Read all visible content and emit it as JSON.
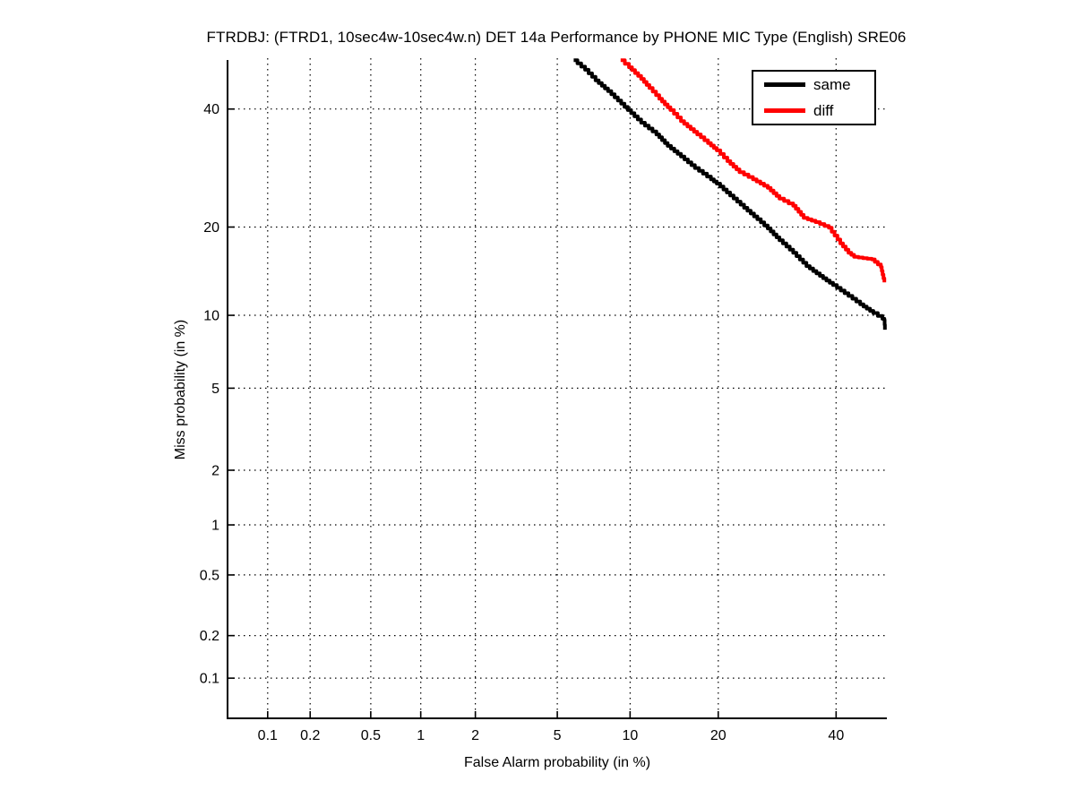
{
  "chart_data": {
    "type": "line",
    "title": "FTRDBJ: (FTRD1, 10sec4w-10sec4w.n) DET 14a Performance by PHONE MIC Type (English) SRE06",
    "xlabel": "False Alarm probability (in %)",
    "ylabel": "Miss probability (in %)",
    "axis_scale": "normal-deviate (probit), both axes",
    "xlim_pct": [
      0.05,
      50
    ],
    "ylim_pct": [
      0.05,
      50
    ],
    "grid": true,
    "grid_style": "dotted",
    "legend_position": "top-right",
    "x_ticks": [
      {
        "value": 0.1,
        "label": "0.1"
      },
      {
        "value": 0.2,
        "label": "0.2"
      },
      {
        "value": 0.5,
        "label": "0.5"
      },
      {
        "value": 1,
        "label": "1"
      },
      {
        "value": 2,
        "label": "2"
      },
      {
        "value": 5,
        "label": "5"
      },
      {
        "value": 10,
        "label": "10"
      },
      {
        "value": 20,
        "label": "20"
      },
      {
        "value": 40,
        "label": "40"
      }
    ],
    "y_ticks": [
      {
        "value": 0.1,
        "label": "0.1"
      },
      {
        "value": 0.2,
        "label": "0.2"
      },
      {
        "value": 0.5,
        "label": "0.5"
      },
      {
        "value": 1,
        "label": "1"
      },
      {
        "value": 2,
        "label": "2"
      },
      {
        "value": 5,
        "label": "5"
      },
      {
        "value": 10,
        "label": "10"
      },
      {
        "value": 20,
        "label": "20"
      },
      {
        "value": 40,
        "label": "40"
      }
    ],
    "series": [
      {
        "name": "same",
        "color": "#000000",
        "points_fa_miss_pct": [
          [
            5.9,
            49.6
          ],
          [
            6.6,
            47.7
          ],
          [
            7.3,
            45.6
          ],
          [
            8.2,
            43.5
          ],
          [
            9.8,
            39.8
          ],
          [
            11.0,
            37.4
          ],
          [
            12.5,
            35.2
          ],
          [
            13.7,
            33.1
          ],
          [
            15.2,
            31.2
          ],
          [
            16.9,
            29.2
          ],
          [
            19.0,
            27.3
          ],
          [
            19.8,
            26.6
          ],
          [
            21.7,
            24.7
          ],
          [
            23.8,
            22.8
          ],
          [
            25.9,
            21.1
          ],
          [
            27.6,
            19.8
          ],
          [
            29.6,
            18.2
          ],
          [
            32.0,
            16.6
          ],
          [
            34.4,
            15.0
          ],
          [
            36.9,
            13.9
          ],
          [
            39.4,
            12.9
          ],
          [
            42.4,
            11.8
          ],
          [
            44.7,
            11.0
          ],
          [
            47.3,
            10.2
          ],
          [
            49.1,
            9.7
          ],
          [
            49.5,
            9.6
          ],
          [
            49.6,
            8.8
          ]
        ]
      },
      {
        "name": "diff",
        "color": "#ff0000",
        "points_fa_miss_pct": [
          [
            9.2,
            49.6
          ],
          [
            9.9,
            48.2
          ],
          [
            11.0,
            45.9
          ],
          [
            11.8,
            44.1
          ],
          [
            12.8,
            42.0
          ],
          [
            14.0,
            39.8
          ],
          [
            15.2,
            37.7
          ],
          [
            17.2,
            35.2
          ],
          [
            18.6,
            33.6
          ],
          [
            19.8,
            32.3
          ],
          [
            21.3,
            30.4
          ],
          [
            23.1,
            28.5
          ],
          [
            25.2,
            27.3
          ],
          [
            27.6,
            25.9
          ],
          [
            29.6,
            24.2
          ],
          [
            32.0,
            23.1
          ],
          [
            33.9,
            21.3
          ],
          [
            36.1,
            20.7
          ],
          [
            38.6,
            19.9
          ],
          [
            40.8,
            17.8
          ],
          [
            42.4,
            16.6
          ],
          [
            43.5,
            16.1
          ],
          [
            47.0,
            15.8
          ],
          [
            48.8,
            14.9
          ],
          [
            49.5,
            13.2
          ]
        ]
      }
    ]
  },
  "legend": {
    "items": [
      {
        "label": "same",
        "color": "#000000"
      },
      {
        "label": "diff",
        "color": "#ff0000"
      }
    ]
  }
}
